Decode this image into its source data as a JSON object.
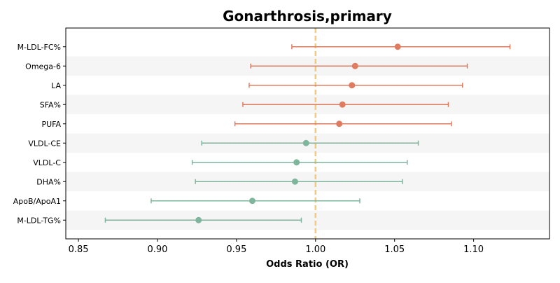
{
  "chart_data": {
    "type": "forest",
    "title": "Gonarthrosis,primary",
    "xlabel": "Odds Ratio (OR)",
    "xlim": [
      0.842,
      1.148
    ],
    "xticks": [
      "0.85",
      "0.90",
      "0.95",
      "1.00",
      "1.05",
      "1.10"
    ],
    "reference_line": 1.0,
    "colors": {
      "risk": "#e07b5f",
      "protective": "#7fb59c",
      "reference": "#f5c97a",
      "stripe": "#f5f5f5"
    },
    "rows": [
      {
        "label": "M-LDL-FC%",
        "or": 1.052,
        "lo": 0.985,
        "hi": 1.123,
        "group": "risk"
      },
      {
        "label": "Omega-6",
        "or": 1.025,
        "lo": 0.959,
        "hi": 1.096,
        "group": "risk"
      },
      {
        "label": "LA",
        "or": 1.023,
        "lo": 0.958,
        "hi": 1.093,
        "group": "risk"
      },
      {
        "label": "SFA%",
        "or": 1.017,
        "lo": 0.954,
        "hi": 1.084,
        "group": "risk"
      },
      {
        "label": "PUFA",
        "or": 1.015,
        "lo": 0.949,
        "hi": 1.086,
        "group": "risk"
      },
      {
        "label": "VLDL-CE",
        "or": 0.994,
        "lo": 0.928,
        "hi": 1.065,
        "group": "protective"
      },
      {
        "label": "VLDL-C",
        "or": 0.988,
        "lo": 0.922,
        "hi": 1.058,
        "group": "protective"
      },
      {
        "label": "DHA%",
        "or": 0.987,
        "lo": 0.924,
        "hi": 1.055,
        "group": "protective"
      },
      {
        "label": "ApoB/ApoA1",
        "or": 0.96,
        "lo": 0.896,
        "hi": 1.028,
        "group": "protective"
      },
      {
        "label": "M-LDL-TG%",
        "or": 0.926,
        "lo": 0.867,
        "hi": 0.991,
        "group": "protective"
      }
    ]
  }
}
